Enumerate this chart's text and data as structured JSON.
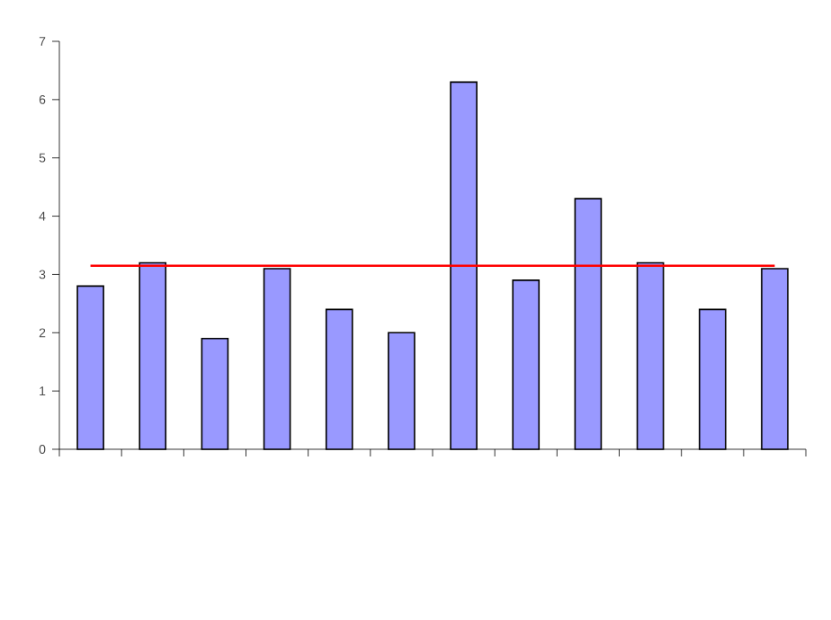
{
  "chart_data": {
    "type": "bar",
    "categories": [
      null,
      null,
      null,
      null,
      null,
      null,
      null,
      null,
      null,
      null,
      null,
      null
    ],
    "values": [
      2.8,
      3.2,
      1.9,
      3.1,
      2.4,
      2.0,
      6.3,
      2.9,
      4.3,
      3.2,
      2.4,
      3.1
    ],
    "color": "#9999ff",
    "ylim": [
      0,
      7
    ],
    "yticks": [
      0,
      1,
      2,
      3,
      4,
      5,
      6,
      7
    ],
    "ref_lines": [
      {
        "axis": "y",
        "value": 3.15,
        "color": "#ff0000"
      }
    ]
  }
}
